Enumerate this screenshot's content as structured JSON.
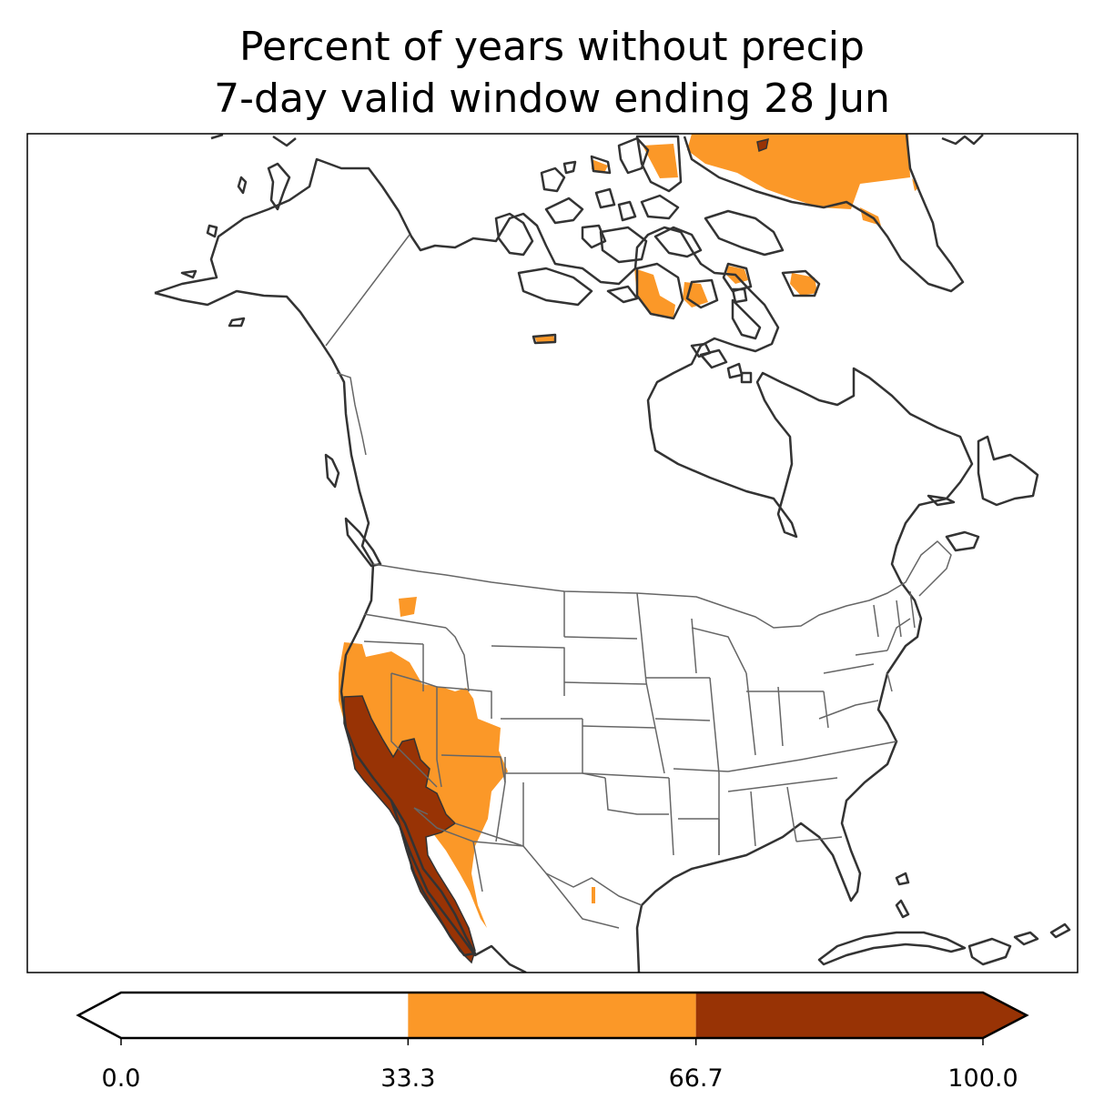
{
  "title": {
    "line1": "Percent of years without precip",
    "line2": "7-day valid window ending 28 Jun"
  },
  "map": {
    "region": "North America",
    "frame": true,
    "coastline_color": "#333333",
    "border_color": "#666666"
  },
  "legend": {
    "type": "colorbar",
    "orientation": "horizontal",
    "extend": "both",
    "ticks": [
      "0.0",
      "33.3",
      "66.7",
      "100.0"
    ],
    "bins": [
      {
        "range": [
          0.0,
          33.3
        ],
        "color": "#ffffff"
      },
      {
        "range": [
          33.3,
          66.7
        ],
        "color": "#fb9828"
      },
      {
        "range": [
          66.7,
          100.0
        ],
        "color": "#983305"
      }
    ],
    "under_color": "#ffffff",
    "over_color": "#983305"
  }
}
